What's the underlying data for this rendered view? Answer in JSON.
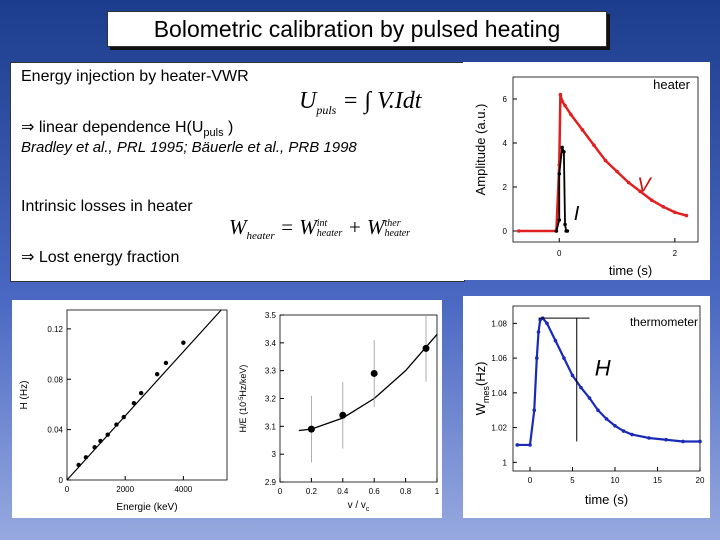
{
  "slide": {
    "title": "Bolometric calibration by pulsed heating",
    "energy_injection": "Energy injection by heater-VWR",
    "linear_prefix": "⇒ linear dependence H(U",
    "linear_sub": "puls",
    "linear_suffix": ")",
    "references": "Bradley et al., PRL 1995; Bäuerle et al., PRB 1998",
    "intrinsic_losses": "Intrinsic losses in heater",
    "lost_energy": "⇒ Lost energy fraction",
    "formula1": {
      "lhs": "U",
      "lhs_sub": "puls",
      "rhs": "= ∫ V.Idt"
    },
    "formula2": {
      "lhs": "W",
      "lhs_sub": "heater",
      "eq": "= W",
      "sup1": "int",
      "sub1": "heater",
      "plus": "+ W",
      "sup2": "ther",
      "sub2": "heater"
    }
  },
  "chart_data": [
    {
      "type": "line",
      "name": "heater-pulse",
      "xlabel": "time (s)",
      "ylabel": "Amplitude (a.u.)",
      "x_ticks": [
        "0",
        "2"
      ],
      "y_ticks": [
        "0",
        "2",
        "4",
        "6"
      ],
      "xlim": [
        -0.8,
        2.4
      ],
      "ylim": [
        -0.5,
        7
      ],
      "legend": "heater",
      "annotations": [
        "V",
        "I"
      ],
      "series": [
        {
          "color": "#e02020",
          "x": [
            -0.7,
            -0.05,
            0.0,
            0.02,
            0.05,
            0.1,
            0.2,
            0.4,
            0.6,
            0.8,
            1.0,
            1.2,
            1.4,
            1.6,
            1.8,
            2.0,
            2.2
          ],
          "y": [
            0,
            0,
            3,
            6.2,
            5.9,
            5.7,
            5.3,
            4.6,
            3.9,
            3.2,
            2.7,
            2.2,
            1.8,
            1.4,
            1.1,
            0.85,
            0.7
          ]
        },
        {
          "color": "#000000",
          "x": [
            -0.05,
            0.0,
            0.0,
            0.05,
            0.08,
            0.1,
            0.12,
            0.14
          ],
          "y": [
            0,
            0.5,
            2.6,
            3.8,
            3.6,
            0.3,
            0,
            0
          ]
        }
      ]
    },
    {
      "type": "line",
      "name": "thermometer-response",
      "xlabel": "time (s)",
      "ylabel": "W",
      "ylabel_sub": "mes",
      "ylabel_suffix": "(Hz)",
      "x_ticks": [
        "0",
        "5",
        "10",
        "15",
        "20"
      ],
      "y_ticks": [
        "1",
        "1.02",
        "1.04",
        "1.06",
        "1.08"
      ],
      "xlim": [
        -2,
        20
      ],
      "ylim": [
        0.995,
        1.09
      ],
      "legend": "thermometer",
      "annotations": [
        "H"
      ],
      "series": [
        {
          "color": "#1a2ab8",
          "x": [
            -1.5,
            0,
            0.5,
            0.8,
            1.0,
            1.2,
            1.5,
            2.0,
            3,
            4,
            5,
            6,
            7,
            8,
            9,
            10,
            11,
            12,
            14,
            16,
            18,
            20
          ],
          "y": [
            1.01,
            1.01,
            1.03,
            1.06,
            1.075,
            1.082,
            1.083,
            1.08,
            1.07,
            1.06,
            1.05,
            1.043,
            1.037,
            1.03,
            1.025,
            1.021,
            1.018,
            1.016,
            1.014,
            1.013,
            1.012,
            1.012
          ]
        }
      ]
    },
    {
      "type": "scatter",
      "name": "H-vs-energy",
      "xlabel": "Energie (keV)",
      "ylabel": "H (Hz)",
      "x_ticks": [
        "0",
        "2000",
        "4000"
      ],
      "y_ticks": [
        "0",
        "0.04",
        "0.08",
        "0.12"
      ],
      "xlim": [
        0,
        5500
      ],
      "ylim": [
        0,
        0.135
      ],
      "points_x": [
        400,
        650,
        950,
        1150,
        1400,
        1700,
        1950,
        2300,
        2550,
        3100,
        3400,
        4000
      ],
      "points_y": [
        0.012,
        0.018,
        0.026,
        0.031,
        0.036,
        0.044,
        0.05,
        0.061,
        0.069,
        0.084,
        0.093,
        0.109
      ],
      "fit": {
        "x": [
          0,
          5300
        ],
        "y": [
          0,
          0.135
        ]
      }
    },
    {
      "type": "scatter",
      "name": "H-over-E-vs-v",
      "xlabel": "v / v",
      "xlabel_sub": "c",
      "ylabel": "H/E (10",
      "ylabel_sup": "-5",
      "ylabel_suffix": "Hz/keV)",
      "x_ticks": [
        "0",
        "0.2",
        "0.4",
        "0.6",
        "0.8",
        "1"
      ],
      "y_ticks": [
        "2.9",
        "3",
        "3.1",
        "3.2",
        "3.3",
        "3.4",
        "3.5"
      ],
      "xlim": [
        0,
        1.0
      ],
      "ylim": [
        2.9,
        3.5
      ],
      "points_x": [
        0.2,
        0.4,
        0.6,
        0.93
      ],
      "points_y": [
        3.09,
        3.14,
        3.29,
        3.38
      ],
      "error_bars": [
        0.12,
        0.12,
        0.12,
        0.12
      ],
      "fit": {
        "x": [
          0.12,
          0.2,
          0.4,
          0.6,
          0.8,
          1.0
        ],
        "y": [
          3.085,
          3.09,
          3.13,
          3.2,
          3.3,
          3.43
        ]
      }
    }
  ]
}
